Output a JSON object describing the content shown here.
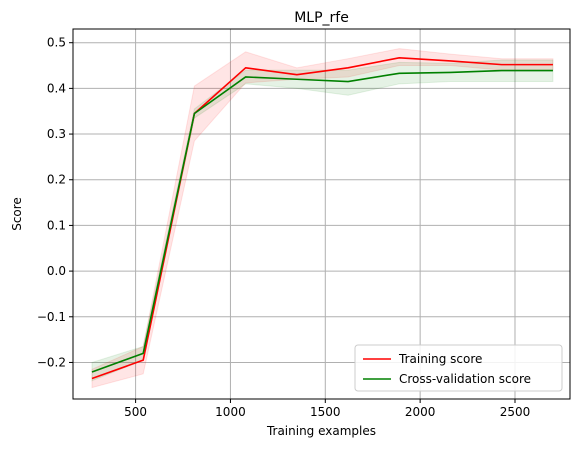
{
  "chart_data": {
    "type": "line",
    "title": "MLP_rfe",
    "xlabel": "Training examples",
    "ylabel": "Score",
    "xlim": [
      170,
      2790
    ],
    "ylim": [
      -0.28,
      0.53
    ],
    "grid": true,
    "x_ticks": [
      500,
      1000,
      1500,
      2000,
      2500
    ],
    "x_tick_labels": [
      "500",
      "1000",
      "1500",
      "2000",
      "2500"
    ],
    "y_ticks": [
      -0.2,
      -0.1,
      0.0,
      0.1,
      0.2,
      0.3,
      0.4,
      0.5
    ],
    "y_tick_labels": [
      "−0.2",
      "−0.1",
      "0.0",
      "0.1",
      "0.2",
      "0.3",
      "0.4",
      "0.5"
    ],
    "legend_position": "lower-right",
    "x": [
      270,
      540,
      810,
      1080,
      1350,
      1620,
      1890,
      2160,
      2430,
      2700
    ],
    "series": [
      {
        "name": "Training score",
        "color": "#ff0000",
        "values": [
          -0.235,
          -0.195,
          0.345,
          0.445,
          0.43,
          0.445,
          0.467,
          0.46,
          0.452,
          0.452
        ],
        "band_low": [
          -0.255,
          -0.225,
          0.285,
          0.412,
          0.42,
          0.425,
          0.45,
          0.45,
          0.44,
          0.44
        ],
        "band_high": [
          -0.215,
          -0.165,
          0.405,
          0.48,
          0.445,
          0.465,
          0.487,
          0.475,
          0.465,
          0.465
        ],
        "band_color": "#ff0000"
      },
      {
        "name": "Cross-validation score",
        "color": "#008000",
        "values": [
          -0.221,
          -0.18,
          0.345,
          0.425,
          0.42,
          0.415,
          0.433,
          0.435,
          0.439,
          0.439
        ],
        "band_low": [
          -0.24,
          -0.195,
          0.335,
          0.41,
          0.4,
          0.385,
          0.41,
          0.415,
          0.415,
          0.415
        ],
        "band_high": [
          -0.2,
          -0.165,
          0.355,
          0.44,
          0.44,
          0.44,
          0.457,
          0.455,
          0.462,
          0.462
        ],
        "band_color": "#008000"
      }
    ]
  }
}
